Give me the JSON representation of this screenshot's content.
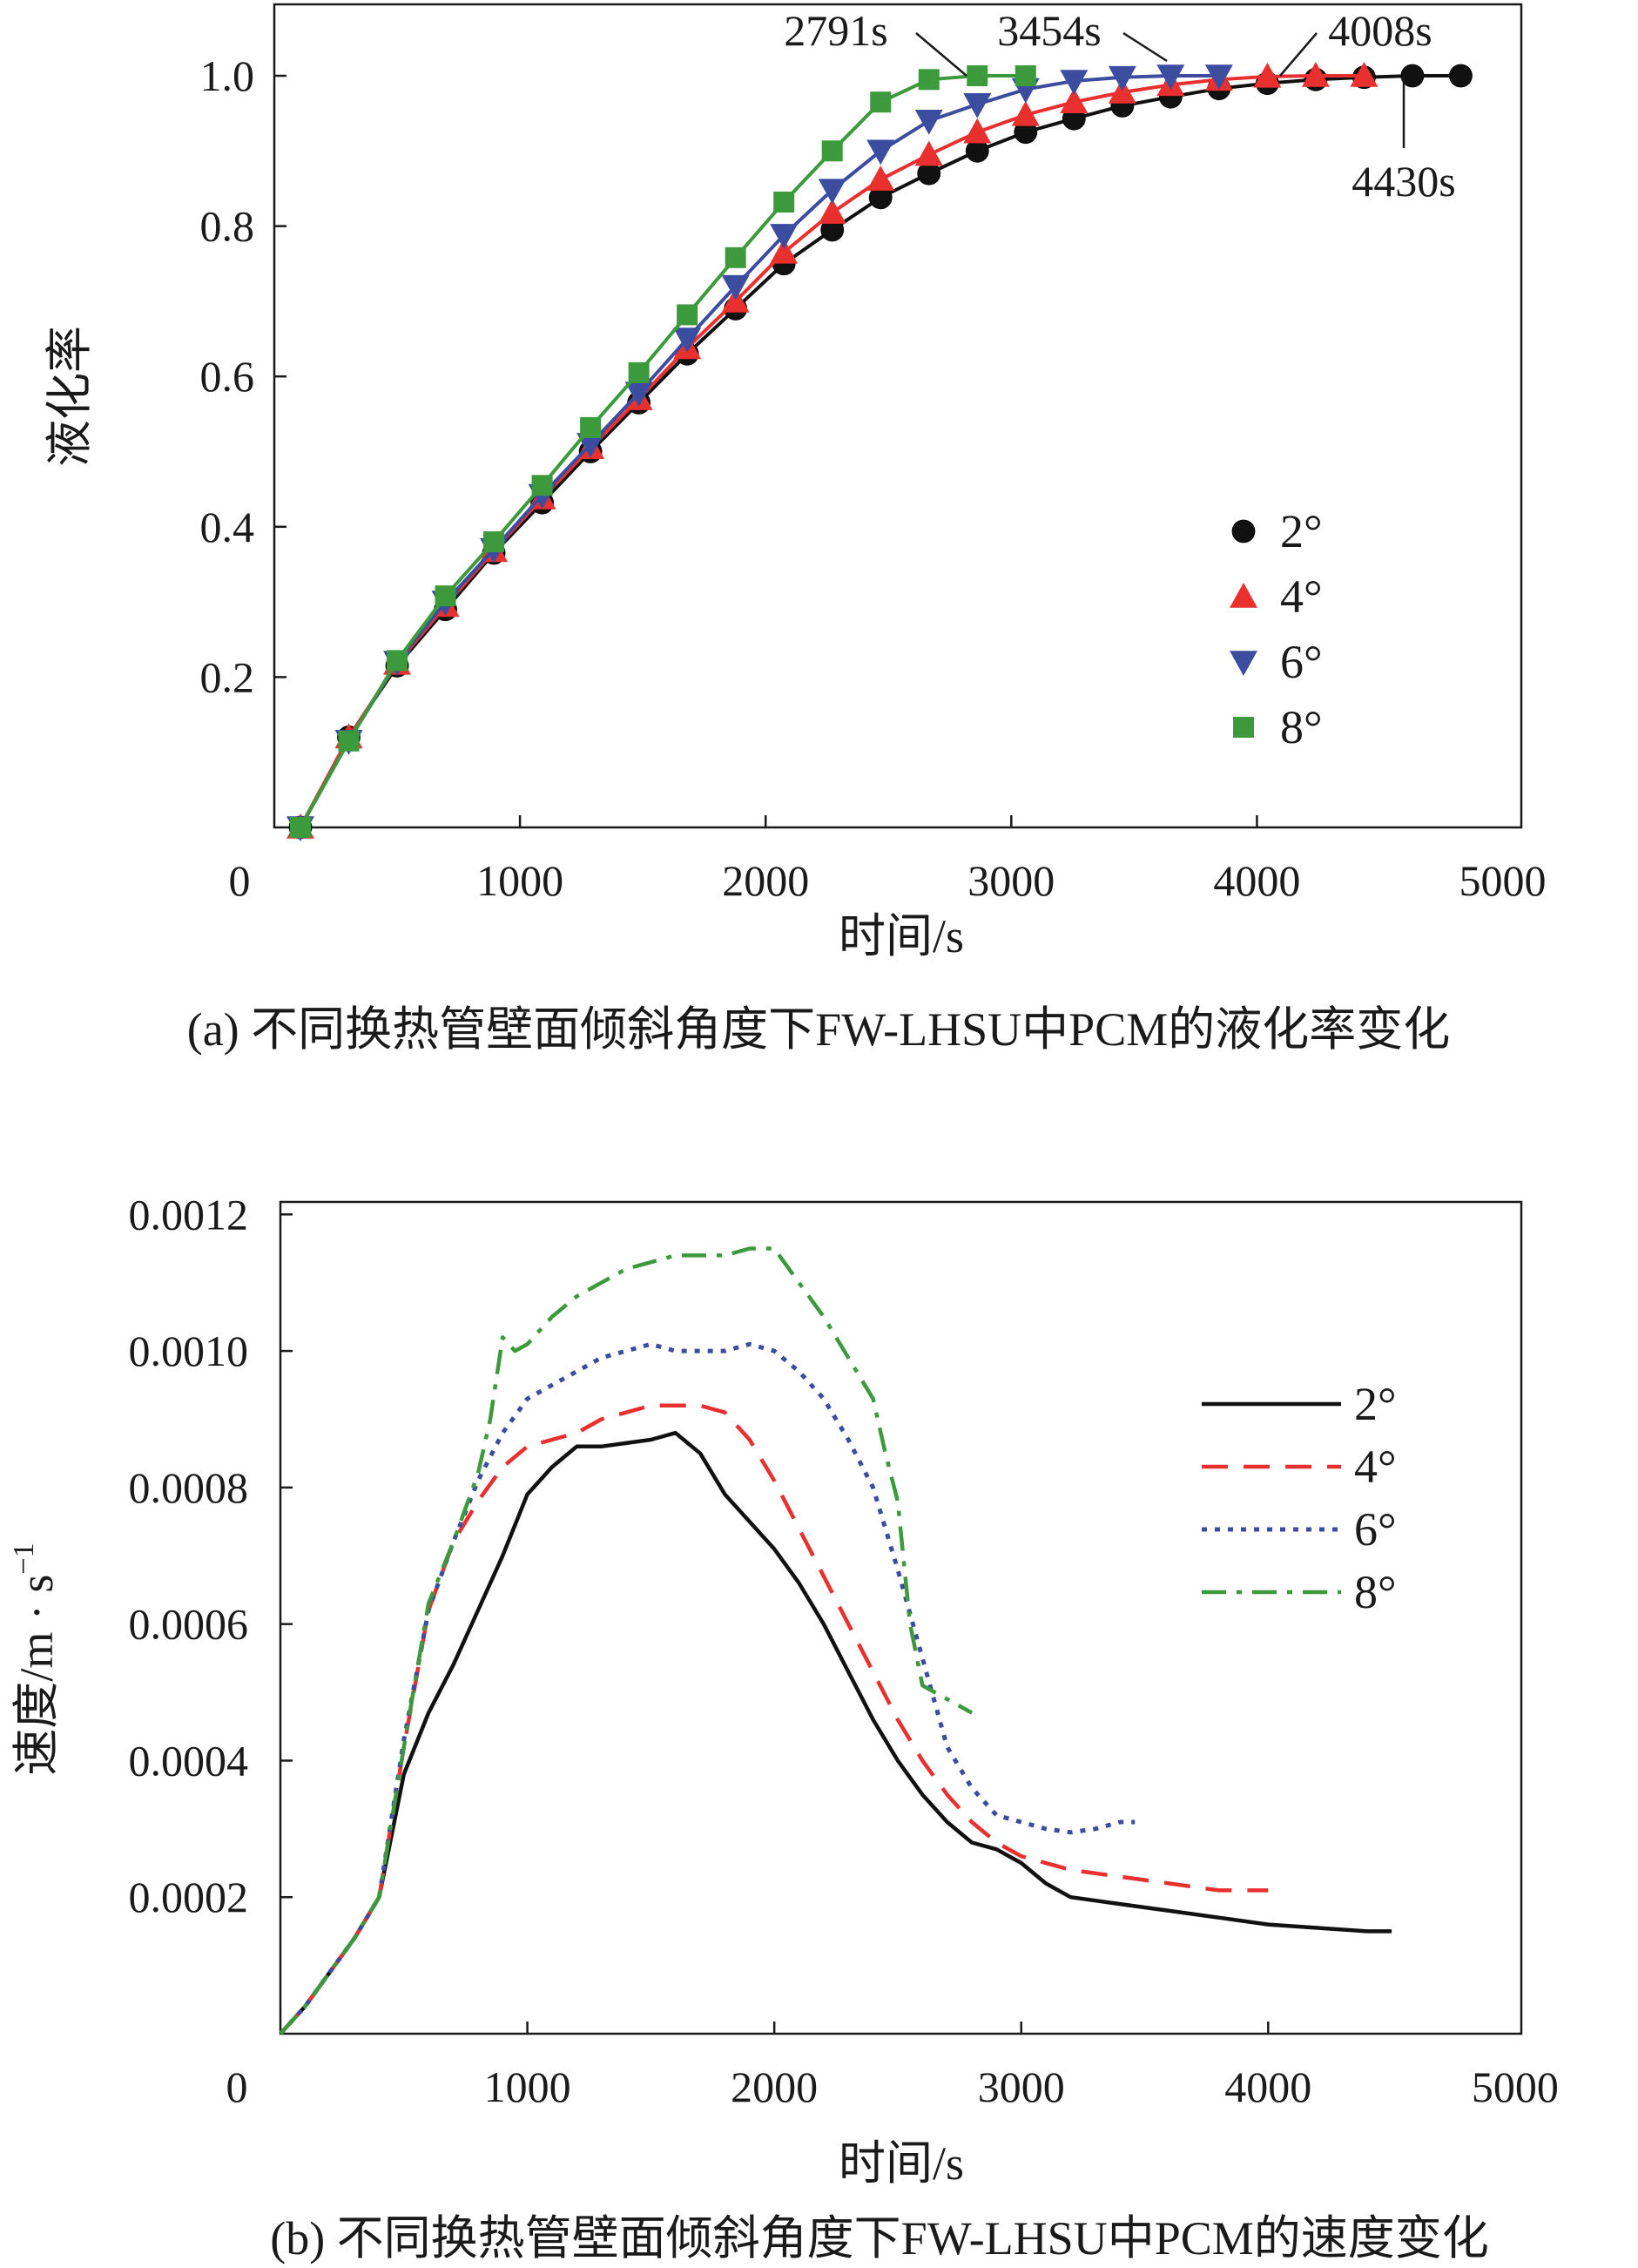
{
  "figure": {
    "colors": {
      "2deg": "#111111",
      "4deg": "#e8312f",
      "6deg": "#3c4da0",
      "8deg": "#3c9a3c"
    }
  },
  "chart_data": [
    {
      "type": "line",
      "panel": "a",
      "caption": "(a) 不同换热管壁面倾斜角度下FW-LHSU中PCM的液化率变化",
      "xlabel": "时间/s",
      "ylabel": "液化率",
      "xlim": [
        0,
        5000
      ],
      "ylim": [
        0,
        1.1
      ],
      "xticks": [
        0,
        1000,
        2000,
        3000,
        4000,
        5000
      ],
      "xtick_labels": [
        "0",
        "1000",
        "2000",
        "3000",
        "4000",
        "5000"
      ],
      "yticks": [
        0.2,
        0.4,
        0.6,
        0.8,
        1.0
      ],
      "ytick_labels": [
        "0.2",
        "0.4",
        "0.6",
        "0.8",
        "1.0"
      ],
      "legend_position": "right-middle",
      "series": [
        {
          "name": "2°",
          "marker": "circle",
          "color": "#111111",
          "x": [
            0,
            200,
            400,
            600,
            800,
            1000,
            1200,
            1400,
            1600,
            1800,
            2000,
            2200,
            2400,
            2600,
            2800,
            3000,
            3200,
            3400,
            3600,
            3800,
            4000,
            4200,
            4400,
            4600,
            4800
          ],
          "y": [
            0.0,
            0.12,
            0.215,
            0.29,
            0.365,
            0.432,
            0.5,
            0.565,
            0.63,
            0.69,
            0.75,
            0.795,
            0.838,
            0.87,
            0.9,
            0.925,
            0.943,
            0.96,
            0.972,
            0.983,
            0.99,
            0.995,
            0.998,
            1.0,
            1.0
          ]
        },
        {
          "name": "4°",
          "marker": "triangle-up",
          "color": "#e8312f",
          "x": [
            0,
            200,
            400,
            600,
            800,
            1000,
            1200,
            1400,
            1600,
            1800,
            2000,
            2200,
            2400,
            2600,
            2800,
            3000,
            3200,
            3400,
            3600,
            3800,
            4000,
            4200,
            4400
          ],
          "y": [
            0.0,
            0.12,
            0.218,
            0.295,
            0.368,
            0.438,
            0.505,
            0.57,
            0.638,
            0.7,
            0.765,
            0.818,
            0.862,
            0.895,
            0.925,
            0.948,
            0.965,
            0.978,
            0.988,
            0.995,
            0.999,
            1.0,
            1.0
          ]
        },
        {
          "name": "6°",
          "marker": "triangle-down",
          "color": "#3c4da0",
          "x": [
            0,
            200,
            400,
            600,
            800,
            1000,
            1200,
            1400,
            1600,
            1800,
            2000,
            2200,
            2400,
            2600,
            2800,
            3000,
            3200,
            3400,
            3600,
            3800
          ],
          "y": [
            0.0,
            0.115,
            0.22,
            0.3,
            0.37,
            0.442,
            0.51,
            0.578,
            0.65,
            0.72,
            0.788,
            0.848,
            0.9,
            0.94,
            0.962,
            0.982,
            0.993,
            0.998,
            1.0,
            1.0
          ]
        },
        {
          "name": "8°",
          "marker": "square",
          "color": "#3c9a3c",
          "x": [
            0,
            200,
            400,
            600,
            800,
            1000,
            1200,
            1400,
            1600,
            1800,
            2000,
            2200,
            2400,
            2600,
            2800,
            3000
          ],
          "y": [
            0.0,
            0.115,
            0.222,
            0.308,
            0.38,
            0.455,
            0.532,
            0.605,
            0.682,
            0.758,
            0.832,
            0.9,
            0.965,
            0.995,
            1.0,
            1.0
          ]
        }
      ],
      "annotations": [
        {
          "text": "2791s",
          "series": "8°",
          "x": 2791,
          "y": 1.0
        },
        {
          "text": "3454s",
          "series": "6°",
          "x": 3454,
          "y": 1.0
        },
        {
          "text": "4008s",
          "series": "4°",
          "x": 4008,
          "y": 1.0
        },
        {
          "text": "4430s",
          "series": "2°",
          "x": 4430,
          "y": 1.0
        }
      ]
    },
    {
      "type": "line",
      "panel": "b",
      "caption": "(b) 不同换热管壁面倾斜角度下FW-LHSU中PCM的速度变化",
      "xlabel": "时间/s",
      "ylabel": "速度/m · s",
      "ylabel_superscript": "−1",
      "xlim": [
        0,
        5000
      ],
      "ylim": [
        0,
        0.0012
      ],
      "xticks": [
        0,
        1000,
        2000,
        3000,
        4000,
        5000
      ],
      "xtick_labels": [
        "0",
        "1000",
        "2000",
        "3000",
        "4000",
        "5000"
      ],
      "yticks": [
        0.0002,
        0.0004,
        0.0006,
        0.0008,
        0.001,
        0.0012
      ],
      "ytick_labels": [
        "0.0002",
        "0.0004",
        "0.0006",
        "0.0008",
        "0.0010",
        "0.0012"
      ],
      "legend_position": "top-right",
      "series": [
        {
          "name": "2°",
          "style": "solid",
          "color": "#111111",
          "x": [
            0,
            100,
            200,
            300,
            400,
            500,
            600,
            700,
            800,
            900,
            1000,
            1100,
            1200,
            1300,
            1400,
            1500,
            1600,
            1700,
            1800,
            1900,
            2000,
            2100,
            2200,
            2300,
            2400,
            2500,
            2600,
            2700,
            2800,
            2900,
            3000,
            3100,
            3200,
            3400,
            3600,
            3800,
            4000,
            4200,
            4400,
            4500
          ],
          "y": [
            0.0,
            4e-05,
            9e-05,
            0.00014,
            0.0002,
            0.00038,
            0.00047,
            0.00054,
            0.00062,
            0.0007,
            0.00079,
            0.00083,
            0.00086,
            0.00086,
            0.000865,
            0.00087,
            0.00088,
            0.00085,
            0.00079,
            0.00075,
            0.00071,
            0.00066,
            0.0006,
            0.00053,
            0.00046,
            0.0004,
            0.00035,
            0.00031,
            0.00028,
            0.00027,
            0.00025,
            0.00022,
            0.0002,
            0.00019,
            0.00018,
            0.00017,
            0.00016,
            0.000155,
            0.00015,
            0.00015
          ]
        },
        {
          "name": "4°",
          "style": "dashed",
          "color": "#e8312f",
          "x": [
            0,
            100,
            200,
            300,
            400,
            500,
            600,
            700,
            800,
            900,
            1000,
            1100,
            1200,
            1300,
            1400,
            1500,
            1600,
            1700,
            1800,
            1900,
            2000,
            2100,
            2200,
            2300,
            2400,
            2500,
            2600,
            2700,
            2800,
            2900,
            3000,
            3200,
            3400,
            3600,
            3800,
            4000
          ],
          "y": [
            0.0,
            4e-05,
            9e-05,
            0.00014,
            0.0002,
            0.00042,
            0.00062,
            0.00072,
            0.00078,
            0.00083,
            0.00086,
            0.00087,
            0.00088,
            0.0009,
            0.00091,
            0.00092,
            0.00092,
            0.00092,
            0.00091,
            0.00087,
            0.00081,
            0.00074,
            0.00067,
            0.0006,
            0.00053,
            0.00046,
            0.0004,
            0.00035,
            0.00031,
            0.00028,
            0.00026,
            0.00024,
            0.00023,
            0.00022,
            0.00021,
            0.00021
          ]
        },
        {
          "name": "6°",
          "style": "dotted",
          "color": "#3c4da0",
          "x": [
            0,
            100,
            200,
            300,
            400,
            500,
            600,
            700,
            800,
            900,
            1000,
            1100,
            1200,
            1300,
            1400,
            1500,
            1600,
            1700,
            1800,
            1900,
            2000,
            2100,
            2200,
            2300,
            2400,
            2500,
            2600,
            2700,
            2800,
            2900,
            3000,
            3100,
            3200,
            3300,
            3400,
            3460
          ],
          "y": [
            0.0,
            4e-05,
            9e-05,
            0.00014,
            0.0002,
            0.00043,
            0.00062,
            0.00072,
            0.00081,
            0.00088,
            0.00093,
            0.00095,
            0.00097,
            0.00099,
            0.001,
            0.00101,
            0.001,
            0.001,
            0.001,
            0.00101,
            0.001,
            0.00097,
            0.00093,
            0.00087,
            0.0008,
            0.00068,
            0.00055,
            0.00042,
            0.00036,
            0.00032,
            0.00031,
            0.0003,
            0.000295,
            0.0003,
            0.00031,
            0.00031
          ]
        },
        {
          "name": "8°",
          "style": "dashdot",
          "color": "#3c9a3c",
          "x": [
            0,
            100,
            200,
            300,
            400,
            500,
            600,
            700,
            800,
            850,
            900,
            950,
            1000,
            1100,
            1200,
            1300,
            1400,
            1500,
            1600,
            1700,
            1800,
            1900,
            2000,
            2100,
            2200,
            2300,
            2400,
            2450,
            2500,
            2550,
            2600,
            2700,
            2800
          ],
          "y": [
            0.0,
            4e-05,
            9e-05,
            0.00014,
            0.0002,
            0.00042,
            0.00063,
            0.00072,
            0.00082,
            0.0009,
            0.00102,
            0.001,
            0.00101,
            0.00105,
            0.00108,
            0.0011,
            0.00112,
            0.00113,
            0.00114,
            0.00114,
            0.00114,
            0.00115,
            0.00115,
            0.0011,
            0.00105,
            0.00099,
            0.00093,
            0.00085,
            0.00078,
            0.0006,
            0.00051,
            0.00049,
            0.00047
          ]
        }
      ]
    }
  ]
}
